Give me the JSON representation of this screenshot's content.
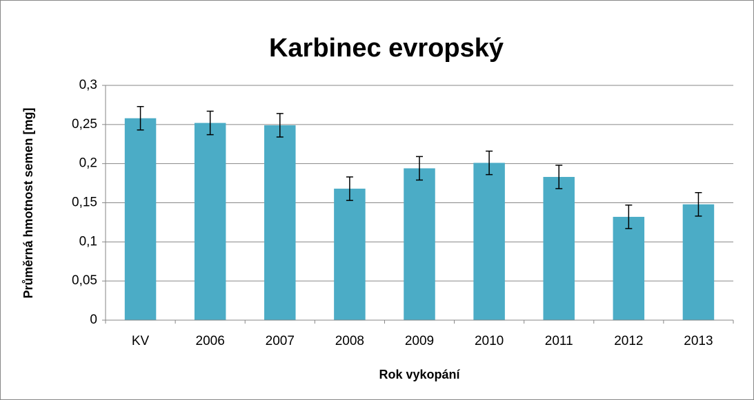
{
  "chart_data": {
    "type": "bar",
    "title": "Karbinec evropský",
    "x_label": "Rok vykopání",
    "y_label": "Průměrná hmotnost semen [mg]",
    "categories": [
      "KV",
      "2006",
      "2007",
      "2008",
      "2009",
      "2010",
      "2011",
      "2012",
      "2013"
    ],
    "values": [
      0.258,
      0.252,
      0.249,
      0.168,
      0.194,
      0.201,
      0.183,
      0.132,
      0.148
    ],
    "errors": [
      0.015,
      0.015,
      0.015,
      0.015,
      0.015,
      0.015,
      0.015,
      0.015,
      0.015
    ],
    "color": "#4bacc6",
    "ylim": [
      0,
      0.3
    ],
    "yticks": [
      0,
      {
        "value": 0.05,
        "label": "0,05"
      },
      {
        "value": 0.1,
        "label": "0,1"
      },
      {
        "value": 0.15,
        "label": "0,15"
      },
      {
        "value": 0.2,
        "label": "0,2"
      },
      {
        "value": 0.25,
        "label": "0,25"
      },
      {
        "value": 0.3,
        "label": "0,3"
      }
    ],
    "grid": true
  }
}
